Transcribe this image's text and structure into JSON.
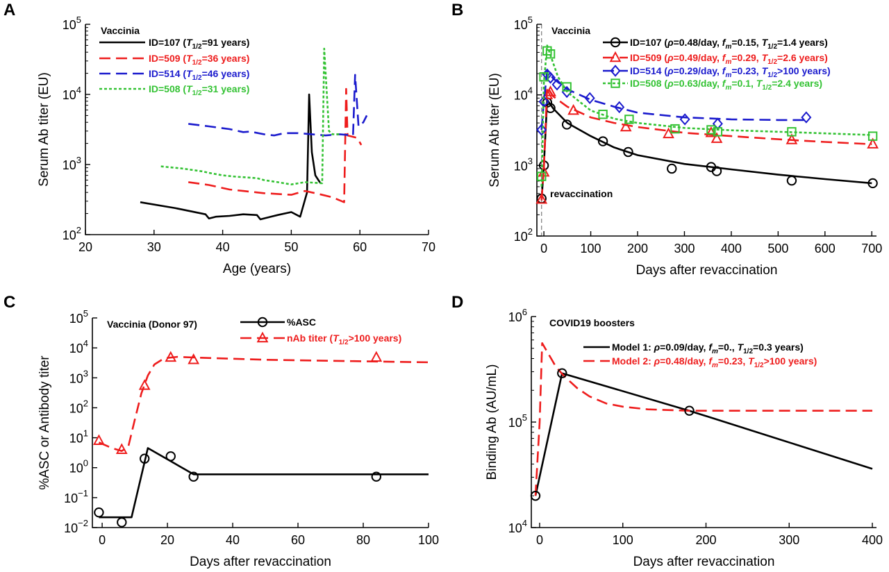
{
  "colors": {
    "black": "#000000",
    "red": "#ee1c1c",
    "blue": "#1a1acd",
    "green": "#33c233",
    "grey": "#777777"
  },
  "chart_data": [
    {
      "panel": "A",
      "type": "line",
      "xlabel": "Age (years)",
      "ylabel": "Serum Ab titer (EU)",
      "yscale": "log",
      "xlim": [
        20,
        70
      ],
      "ylim": [
        100,
        100000
      ],
      "xticks": [
        "20",
        "30",
        "40",
        "50",
        "60",
        "70"
      ],
      "annotation": "Vaccinia",
      "legend_position": "top-left",
      "grid": false,
      "series": [
        {
          "id": "ID=107",
          "half_life": "=91 years)",
          "color": "black",
          "dash": "solid",
          "x": [
            28,
            33,
            37.5,
            38,
            39,
            41,
            43,
            45,
            45.5,
            46,
            47,
            48,
            50,
            51.3,
            52.3,
            52.6,
            53,
            53.5,
            54.2
          ],
          "y": [
            290,
            240,
            195,
            170,
            180,
            185,
            195,
            190,
            165,
            170,
            180,
            190,
            210,
            180,
            400,
            10000,
            1500,
            700,
            550
          ]
        },
        {
          "id": "ID=509",
          "half_life": "=36 years)",
          "color": "red",
          "dash": "dashed",
          "x": [
            35,
            38,
            41,
            43,
            44,
            45,
            46,
            48,
            50,
            52,
            54,
            56,
            57.7,
            58,
            58.2,
            59.6,
            60.2
          ],
          "y": [
            560,
            510,
            440,
            420,
            410,
            400,
            390,
            380,
            370,
            420,
            380,
            340,
            290,
            12000,
            2600,
            2400,
            1900
          ]
        },
        {
          "id": "ID=514",
          "half_life": "=46 years)",
          "color": "blue",
          "dash": "dashed",
          "x": [
            35,
            38,
            41,
            43,
            44,
            46,
            47.5,
            49,
            51,
            53,
            55,
            57,
            59,
            59.3,
            59.8,
            60.5,
            61
          ],
          "y": [
            3800,
            3500,
            3200,
            2900,
            2950,
            2700,
            2600,
            2800,
            2800,
            2700,
            2600,
            2700,
            2600,
            19000,
            3500,
            4000,
            5000
          ]
        },
        {
          "id": "ID=508",
          "half_life": "=31 years)",
          "color": "green",
          "dash": "dotted",
          "x": [
            31,
            34,
            37,
            38,
            40,
            42,
            44,
            45,
            46,
            48,
            50,
            52,
            54.5,
            54.8,
            55.5,
            56,
            57
          ],
          "y": [
            940,
            880,
            800,
            760,
            700,
            670,
            650,
            640,
            600,
            560,
            520,
            560,
            540,
            45000,
            3000,
            2700,
            2700
          ]
        }
      ]
    },
    {
      "panel": "B",
      "type": "scatter+line",
      "xlabel": "Days after revaccination",
      "ylabel": "Serum Ab titer (EU)",
      "yscale": "log",
      "xlim": [
        -15,
        710
      ],
      "ylim": [
        100,
        100000
      ],
      "xticks": [
        "0",
        "100",
        "200",
        "300",
        "400",
        "500",
        "600",
        "700"
      ],
      "annotations": [
        "Vaccinia",
        "revaccination"
      ],
      "legend_position": "top-right",
      "grid": false,
      "series": [
        {
          "id": "ID=107",
          "rho": "=0.48/day, ",
          "fm": "=0.15, ",
          "half_life": "=1.4 years)",
          "color": "black",
          "marker": "circle",
          "dash": "solid",
          "points_x": [
            -5,
            0,
            7,
            14,
            49,
            126,
            180,
            273,
            357,
            369,
            529,
            702
          ],
          "points_y": [
            340,
            1000,
            7800,
            6500,
            3800,
            2200,
            1550,
            900,
            950,
            830,
            610,
            560
          ],
          "fit_x": [
            -5,
            0,
            7,
            20,
            50,
            100,
            150,
            200,
            300,
            400,
            500,
            600,
            700
          ],
          "fit_y": [
            320,
            1000,
            8500,
            6400,
            4000,
            2600,
            1800,
            1400,
            1050,
            880,
            740,
            640,
            560
          ]
        },
        {
          "id": "ID=509",
          "rho": "=0.49/day, ",
          "fm": "=0.29, ",
          "half_life": "=2.6 years)",
          "color": "red",
          "marker": "triangle",
          "dash": "dashed",
          "points_x": [
            -5,
            0,
            7,
            14,
            63,
            175,
            266,
            357,
            369,
            529,
            702
          ],
          "points_y": [
            330,
            800,
            10000,
            11000,
            6000,
            3500,
            2800,
            2900,
            2400,
            2300,
            2000
          ],
          "fit_x": [
            -5,
            0,
            7,
            20,
            50,
            100,
            150,
            200,
            300,
            400,
            500,
            600,
            700
          ],
          "fit_y": [
            320,
            900,
            13000,
            9500,
            6800,
            4800,
            4000,
            3500,
            2900,
            2600,
            2350,
            2150,
            2000
          ]
        },
        {
          "id": "ID=514",
          "rho": "=0.29/day, ",
          "fm": "=0.23, ",
          "half_life": ">100 years)",
          "color": "blue",
          "marker": "diamond",
          "dash": "dashed",
          "points_x": [
            -5,
            0,
            7,
            14,
            28,
            49,
            98,
            161,
            301,
            371,
            560
          ],
          "points_y": [
            3200,
            8000,
            19500,
            17500,
            14000,
            11000,
            9000,
            6700,
            4500,
            3900,
            4800
          ],
          "fit_x": [
            -5,
            0,
            7,
            20,
            50,
            100,
            150,
            200,
            300,
            400,
            500,
            560
          ],
          "fit_y": [
            3200,
            8000,
            22000,
            17000,
            12000,
            8500,
            6800,
            5600,
            4800,
            4500,
            4400,
            4400
          ]
        },
        {
          "id": "ID=508",
          "rho": "=0.63/day, ",
          "fm": "=0.1, ",
          "half_life": "=2.4 years)",
          "color": "green",
          "marker": "square",
          "dash": "dotted",
          "points_x": [
            -5,
            0,
            7,
            14,
            49,
            126,
            182,
            280,
            357,
            371,
            529,
            702
          ],
          "points_y": [
            700,
            18000,
            42000,
            38000,
            13000,
            5300,
            4500,
            3300,
            3200,
            3000,
            3000,
            2600
          ],
          "fit_x": [
            -5,
            0,
            7,
            15,
            30,
            50,
            100,
            150,
            200,
            300,
            400,
            500,
            600,
            700
          ],
          "fit_y": [
            500,
            15000,
            50000,
            35000,
            18000,
            11000,
            6000,
            4600,
            4000,
            3400,
            3150,
            3000,
            2850,
            2700
          ]
        }
      ]
    },
    {
      "panel": "C",
      "type": "scatter+line",
      "xlabel": "Days after revaccination",
      "ylabel": "%ASC or Antibody titer",
      "yscale": "log",
      "xlim": [
        -3,
        100
      ],
      "ylim": [
        0.01,
        100000
      ],
      "xticks": [
        "0",
        "20",
        "40",
        "60",
        "80",
        "100"
      ],
      "yticks": [
        "10-2",
        "10-1",
        "100",
        "101",
        "102",
        "103",
        "104",
        "105"
      ],
      "annotation": "Vaccinia (Donor 97)",
      "legend_position": "top-right",
      "grid": false,
      "series": [
        {
          "name": "%ASC",
          "color": "black",
          "marker": "circle",
          "dash": "solid",
          "points_x": [
            -1,
            6,
            13,
            21,
            28,
            84
          ],
          "points_y": [
            0.032,
            0.015,
            2.0,
            2.4,
            0.5,
            0.5
          ],
          "fit_x": [
            -1,
            9,
            14,
            28,
            100
          ],
          "fit_y": [
            0.022,
            0.022,
            4.5,
            0.6,
            0.6
          ]
        },
        {
          "name": "nAb titer (",
          "half_life": ">100 years)",
          "color": "red",
          "marker": "triangle",
          "dash": "dashed",
          "points_x": [
            -1,
            6,
            13,
            21,
            28,
            84
          ],
          "points_y": [
            8,
            4,
            550,
            4800,
            4000,
            4800
          ],
          "fit_x": [
            -1,
            3,
            6,
            8,
            10,
            12,
            14,
            16,
            19,
            23,
            30,
            50,
            100
          ],
          "fit_y": [
            7,
            4.5,
            3.6,
            5,
            40,
            300,
            1200,
            2800,
            4500,
            5000,
            4700,
            4000,
            3300
          ]
        }
      ]
    },
    {
      "panel": "D",
      "type": "scatter+line",
      "xlabel": "Days after revaccination",
      "ylabel": "Binding Ab (AU/mL)",
      "yscale": "log",
      "xlim": [
        -10,
        405
      ],
      "ylim": [
        10000,
        1000000
      ],
      "xticks": [
        "0",
        "100",
        "200",
        "300",
        "400"
      ],
      "annotation": "COVID19 boosters",
      "legend_position": "top-right",
      "grid": false,
      "points": {
        "x": [
          -5,
          27,
          180
        ],
        "y": [
          20000,
          290000,
          128000
        ]
      },
      "series": [
        {
          "id": "Model 1: ",
          "rho": "=0.09/day, ",
          "fm": "=0., ",
          "half_life": "=0.3 years)",
          "color": "black",
          "dash": "solid",
          "fit_x": [
            -5,
            27,
            180,
            400
          ],
          "fit_y": [
            20000,
            290000,
            128000,
            36000
          ]
        },
        {
          "id": "Model 2: ",
          "rho": "=0.48/day, ",
          "fm": "=0.23, ",
          "half_life": ">100 years)",
          "color": "red",
          "dash": "dashed",
          "fit_x": [
            -5,
            0,
            3,
            10,
            20,
            30,
            45,
            60,
            80,
            100,
            130,
            180,
            250,
            400
          ],
          "fit_y": [
            20000,
            100000,
            560000,
            450000,
            330000,
            270000,
            210000,
            175000,
            150000,
            140000,
            132000,
            128000,
            128000,
            128000
          ]
        }
      ]
    }
  ]
}
